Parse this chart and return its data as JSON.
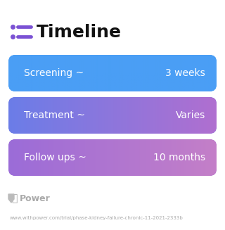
{
  "title": "Timeline",
  "title_fontsize": 18,
  "title_color": "#111111",
  "icon_color": "#7b52d4",
  "icon_line_color": "#7b52d4",
  "rows": [
    {
      "label": "Screening ~",
      "value": "3 weeks",
      "color_left": "#4a9ef5",
      "color_right": "#4a9ef5"
    },
    {
      "label": "Treatment ~",
      "value": "Varies",
      "color_left": "#6b7de8",
      "color_right": "#b06fd0"
    },
    {
      "label": "Follow ups ~",
      "value": "10 months",
      "color_left": "#9b6cd8",
      "color_right": "#c47fc8"
    }
  ],
  "row_text_color": "#ffffff",
  "row_label_fontsize": 10,
  "row_value_fontsize": 10,
  "footer_logo_text": "Power",
  "footer_logo_color": "#aaaaaa",
  "footer_url": "www.withpower.com/trial/phase-kidney-failure-chronic-11-2021-2333b",
  "footer_fontsize": 5.0,
  "background_color": "#ffffff"
}
